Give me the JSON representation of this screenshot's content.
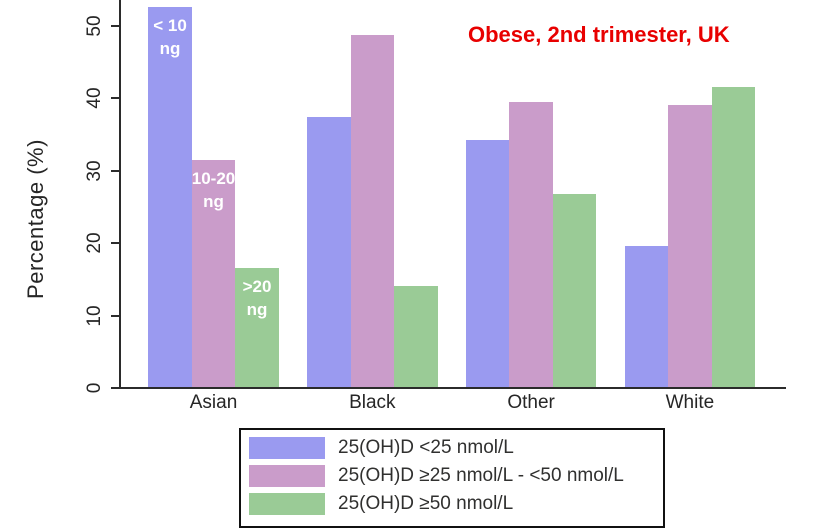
{
  "title": {
    "text": "Obese, 2nd trimester, UK",
    "color": "#e80000"
  },
  "y_axis": {
    "label": "Percentage (%)",
    "tick_labels": [
      "0",
      "10",
      "20",
      "30",
      "40",
      "50"
    ]
  },
  "x_axis": {
    "categories": [
      "Asian",
      "Black",
      "Other",
      "White"
    ]
  },
  "legend": {
    "items": [
      {
        "label": "25(OH)D <25 nmol/L",
        "color": "#9a9af0"
      },
      {
        "label": "25(OH)D ≥25 nmol/L - <50 nmol/L",
        "color": "#ca9cca"
      },
      {
        "label": "25(OH)D ≥50 nmol/L",
        "color": "#9acb96"
      }
    ]
  },
  "chart_data": {
    "type": "bar",
    "categories": [
      "Asian",
      "Black",
      "Other",
      "White"
    ],
    "series": [
      {
        "name": "25(OH)D <25 nmol/L",
        "color": "#9a9af0",
        "values": [
          52.5,
          37.4,
          34.2,
          19.6
        ]
      },
      {
        "name": "25(OH)D ≥25 nmol/L - <50 nmol/L",
        "color": "#ca9cca",
        "values": [
          31.5,
          48.7,
          39.4,
          39.1
        ]
      },
      {
        "name": "25(OH)D ≥50 nmol/L",
        "color": "#9acb96",
        "values": [
          16.5,
          14.1,
          26.8,
          41.5
        ]
      }
    ],
    "title": "Obese, 2nd trimester, UK",
    "xlabel": "",
    "ylabel": "Percentage (%)",
    "ylim": [
      0,
      53.5
    ],
    "yticks": [
      0,
      10,
      20,
      30,
      40,
      50
    ],
    "grid": false,
    "legend_position": "bottom",
    "bar_label_color": "#ffffff",
    "annotations": [
      {
        "category": "Asian",
        "series_index": 0,
        "lines": [
          "< 10",
          "ng"
        ]
      },
      {
        "category": "Asian",
        "series_index": 1,
        "lines": [
          "10-20",
          "ng"
        ]
      },
      {
        "category": "Asian",
        "series_index": 2,
        "lines": [
          ">20",
          "ng"
        ]
      }
    ]
  }
}
